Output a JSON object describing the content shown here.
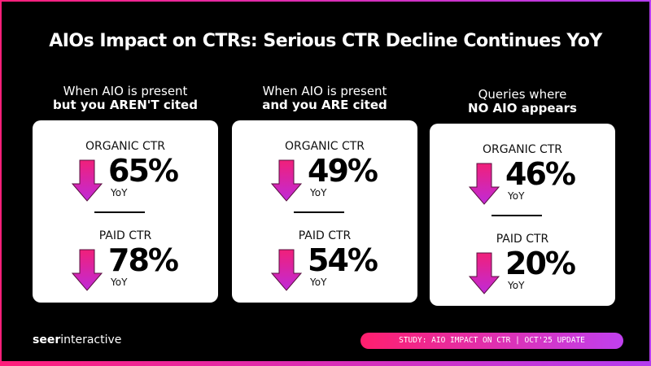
{
  "title": "AIOs Impact on CTRs: Serious CTR Decline Continues YoY",
  "columns": [
    {
      "head_line1": "When AIO is present",
      "head_line2": "but you AREN'T cited",
      "organic_label": "ORGANIC CTR",
      "organic_value": "65%",
      "paid_label": "PAID CTR",
      "paid_value": "78%",
      "yoy": "YoY"
    },
    {
      "head_line1": "When AIO is present",
      "head_line2": "and you ARE cited",
      "organic_label": "ORGANIC CTR",
      "organic_value": "49%",
      "paid_label": "PAID CTR",
      "paid_value": "54%",
      "yoy": "YoY"
    },
    {
      "head_line1": "Queries where",
      "head_line2": "NO AIO appears",
      "organic_label": "ORGANIC CTR",
      "organic_value": "46%",
      "paid_label": "PAID CTR",
      "paid_value": "20%",
      "yoy": "YoY"
    }
  ],
  "logo": {
    "bold": "seer",
    "rest": "interactive"
  },
  "badge": "STUDY: AIO IMPACT ON CTR | OCT'25 UPDATE",
  "colors": {
    "arrow_top": "#f0207a",
    "arrow_bottom": "#c02ad8",
    "accent": "#ff1f7a",
    "accent2": "#b43cf0"
  },
  "icons": {
    "arrow": "down-arrow-icon"
  }
}
